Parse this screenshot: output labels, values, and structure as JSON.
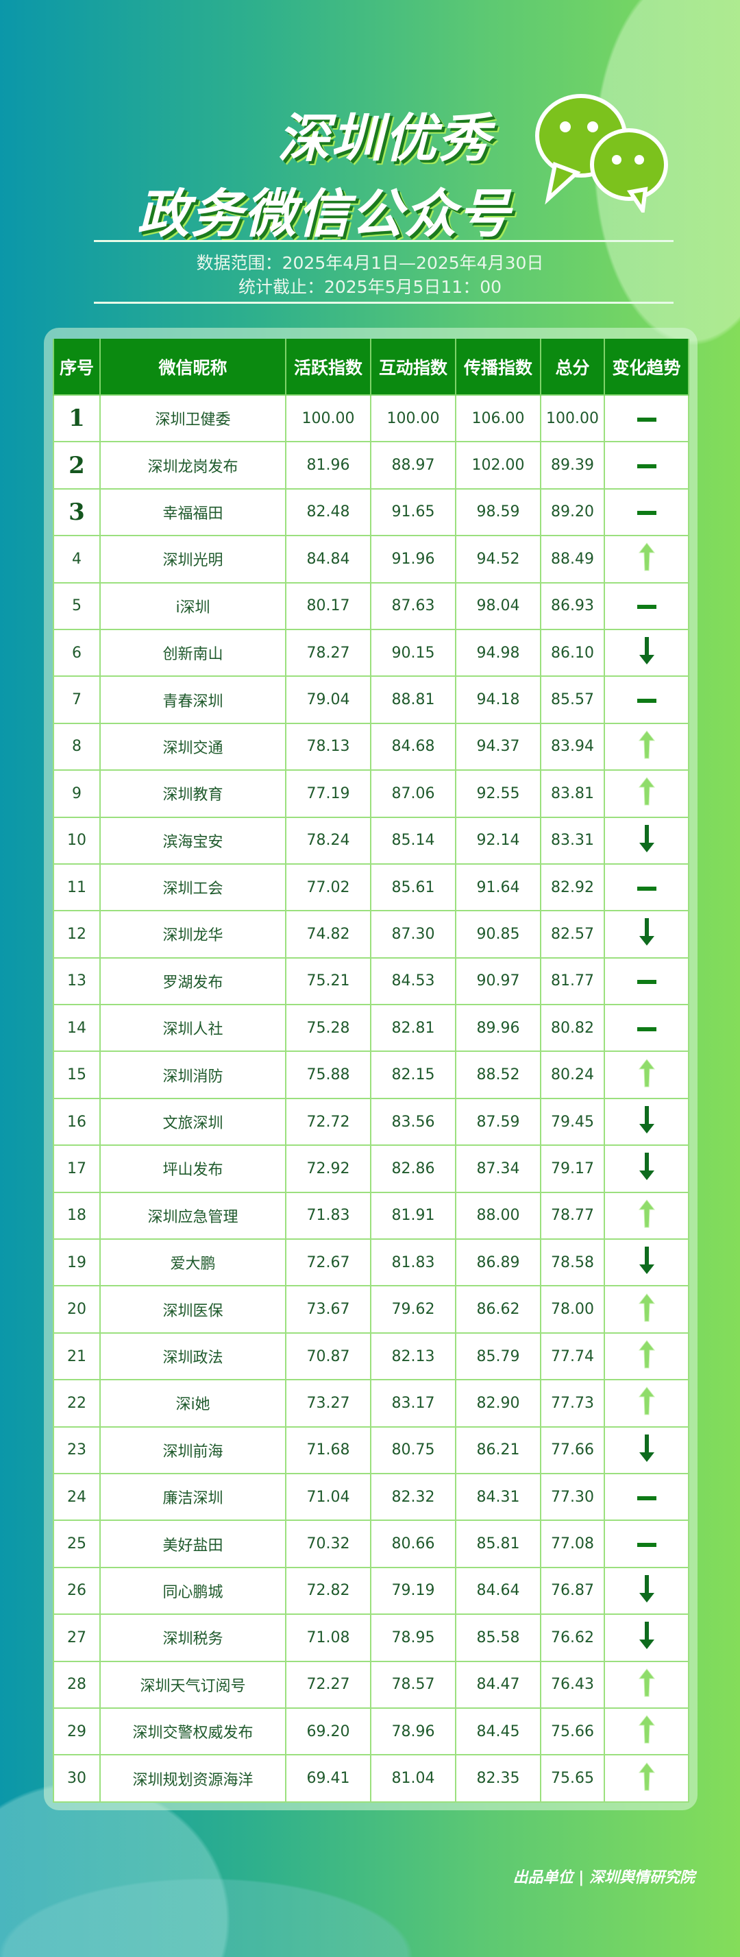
{
  "header": {
    "title_line1": "深圳优秀",
    "title_line2": "政务微信公众号",
    "data_range": "数据范围：2025年4月1日—2025年4月30日",
    "cutoff": "统计截止：2025年5月5日11：00",
    "logo_icon": "wechat-icon"
  },
  "colors": {
    "header_bg": "#0b8a10",
    "border": "#9be07e",
    "text": "#1f5a2c",
    "trend_up": "#8fdc6a",
    "trend_down": "#0e6b1e",
    "trend_flat": "#0e7a16"
  },
  "table": {
    "columns": [
      "序号",
      "微信昵称",
      "活跃指数",
      "互动指数",
      "传播指数",
      "总分",
      "变化趋势"
    ],
    "rows": [
      [
        "1",
        "深圳卫健委",
        "100.00",
        "100.00",
        "106.00",
        "100.00",
        "flat"
      ],
      [
        "2",
        "深圳龙岗发布",
        "81.96",
        "88.97",
        "102.00",
        "89.39",
        "flat"
      ],
      [
        "3",
        "幸福福田",
        "82.48",
        "91.65",
        "98.59",
        "89.20",
        "flat"
      ],
      [
        "4",
        "深圳光明",
        "84.84",
        "91.96",
        "94.52",
        "88.49",
        "up"
      ],
      [
        "5",
        "i深圳",
        "80.17",
        "87.63",
        "98.04",
        "86.93",
        "flat"
      ],
      [
        "6",
        "创新南山",
        "78.27",
        "90.15",
        "94.98",
        "86.10",
        "down"
      ],
      [
        "7",
        "青春深圳",
        "79.04",
        "88.81",
        "94.18",
        "85.57",
        "flat"
      ],
      [
        "8",
        "深圳交通",
        "78.13",
        "84.68",
        "94.37",
        "83.94",
        "up"
      ],
      [
        "9",
        "深圳教育",
        "77.19",
        "87.06",
        "92.55",
        "83.81",
        "up"
      ],
      [
        "10",
        "滨海宝安",
        "78.24",
        "85.14",
        "92.14",
        "83.31",
        "down"
      ],
      [
        "11",
        "深圳工会",
        "77.02",
        "85.61",
        "91.64",
        "82.92",
        "flat"
      ],
      [
        "12",
        "深圳龙华",
        "74.82",
        "87.30",
        "90.85",
        "82.57",
        "down"
      ],
      [
        "13",
        "罗湖发布",
        "75.21",
        "84.53",
        "90.97",
        "81.77",
        "flat"
      ],
      [
        "14",
        "深圳人社",
        "75.28",
        "82.81",
        "89.96",
        "80.82",
        "flat"
      ],
      [
        "15",
        "深圳消防",
        "75.88",
        "82.15",
        "88.52",
        "80.24",
        "up"
      ],
      [
        "16",
        "文旅深圳",
        "72.72",
        "83.56",
        "87.59",
        "79.45",
        "down"
      ],
      [
        "17",
        "坪山发布",
        "72.92",
        "82.86",
        "87.34",
        "79.17",
        "down"
      ],
      [
        "18",
        "深圳应急管理",
        "71.83",
        "81.91",
        "88.00",
        "78.77",
        "up"
      ],
      [
        "19",
        "爱大鹏",
        "72.67",
        "81.83",
        "86.89",
        "78.58",
        "down"
      ],
      [
        "20",
        "深圳医保",
        "73.67",
        "79.62",
        "86.62",
        "78.00",
        "up"
      ],
      [
        "21",
        "深圳政法",
        "70.87",
        "82.13",
        "85.79",
        "77.74",
        "up"
      ],
      [
        "22",
        "深i她",
        "73.27",
        "83.17",
        "82.90",
        "77.73",
        "up"
      ],
      [
        "23",
        "深圳前海",
        "71.68",
        "80.75",
        "86.21",
        "77.66",
        "down"
      ],
      [
        "24",
        "廉洁深圳",
        "71.04",
        "82.32",
        "84.31",
        "77.30",
        "flat"
      ],
      [
        "25",
        "美好盐田",
        "70.32",
        "80.66",
        "85.81",
        "77.08",
        "flat"
      ],
      [
        "26",
        "同心鹏城",
        "72.82",
        "79.19",
        "84.64",
        "76.87",
        "down"
      ],
      [
        "27",
        "深圳税务",
        "71.08",
        "78.95",
        "85.58",
        "76.62",
        "down"
      ],
      [
        "28",
        "深圳天气订阅号",
        "72.27",
        "78.57",
        "84.47",
        "76.43",
        "up"
      ],
      [
        "29",
        "深圳交警权威发布",
        "69.20",
        "78.96",
        "84.45",
        "75.66",
        "up"
      ],
      [
        "30",
        "深圳规划资源海洋",
        "69.41",
        "81.04",
        "82.35",
        "75.65",
        "up"
      ]
    ]
  },
  "footer": "出品单位 | 深圳舆情研究院"
}
